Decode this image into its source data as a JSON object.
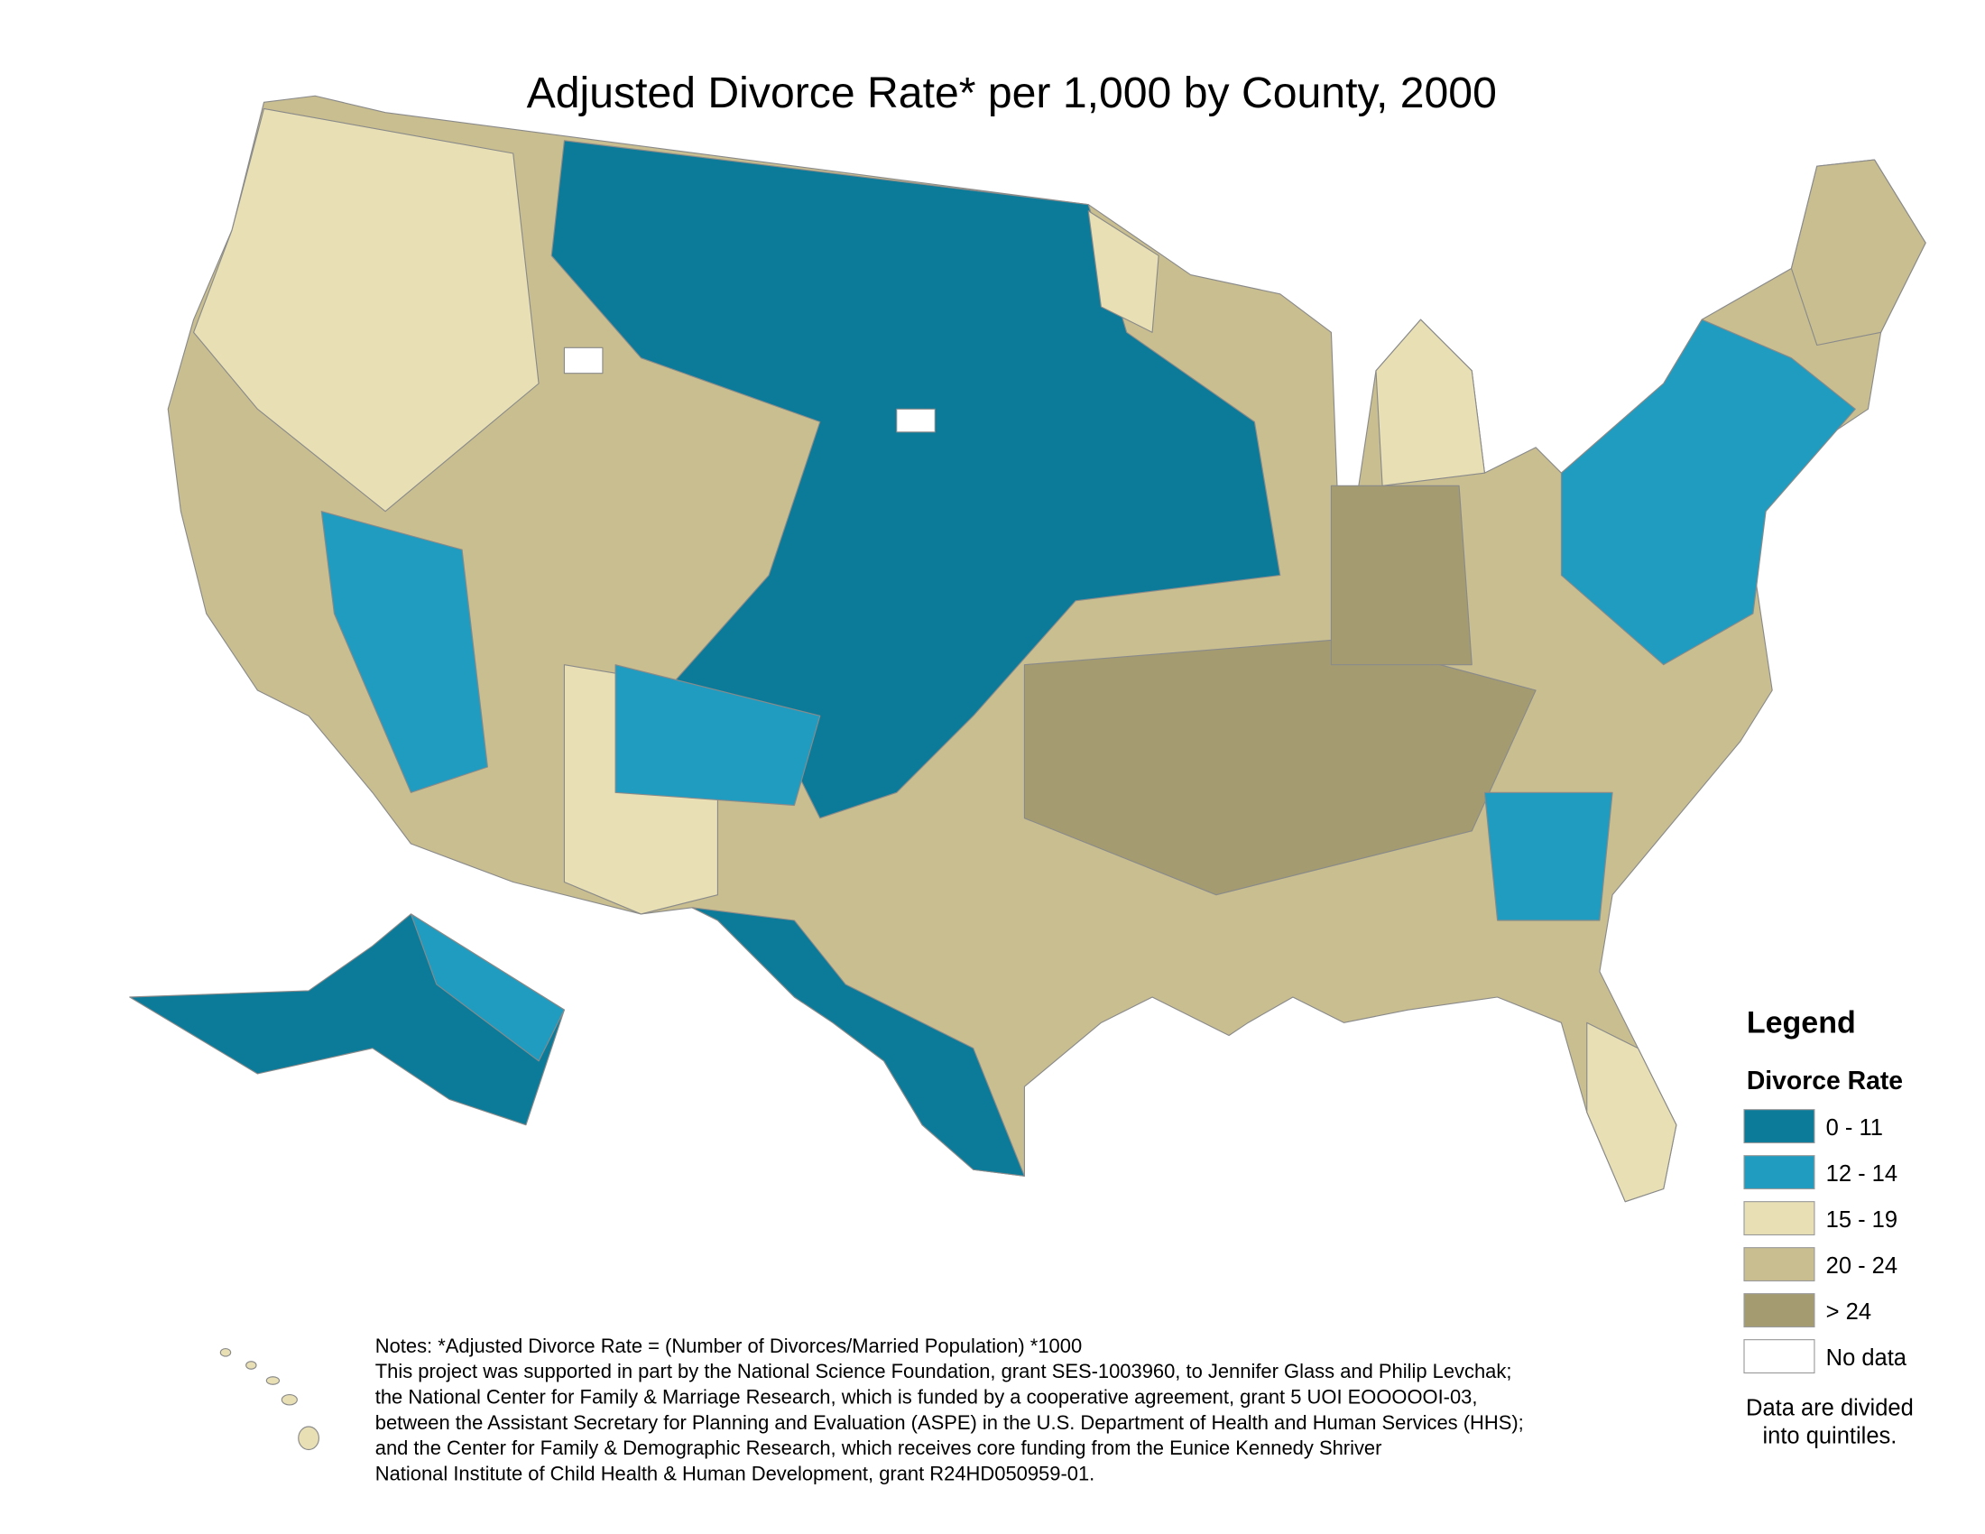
{
  "title": "Adjusted Divorce Rate* per 1,000 by County, 2000",
  "legend": {
    "title": "Legend",
    "subtitle": "Divorce Rate",
    "items": [
      {
        "label": "0 - 11",
        "color": "#0c7b9a"
      },
      {
        "label": "12 - 14",
        "color": "#1f9cc0"
      },
      {
        "label": "15 - 19",
        "color": "#e8e0b4"
      },
      {
        "label": "20 - 24",
        "color": "#c9be90"
      },
      {
        "label": "> 24",
        "color": "#a49c70"
      },
      {
        "label": "No data",
        "color": "#ffffff"
      }
    ],
    "note": [
      "Data are divided",
      "into quintiles."
    ]
  },
  "notes": [
    "Notes: *Adjusted Divorce Rate = (Number of Divorces/Married Population) *1000",
    "This project was supported in part by the National Science Foundation, grant SES-1003960, to Jennifer Glass and Philip Levchak;",
    "the National Center for Family & Marriage Research, which is funded by a cooperative agreement, grant 5 UOI EOOOOOI-03,",
    "between the Assistant Secretary for Planning and Evaluation (ASPE) in the U.S. Department of Health and Human Services (HHS);",
    "and the Center for Family & Demographic Research, which receives core funding from the Eunice Kennedy Shriver",
    "National Institute of Child Health & Human Development, grant R24HD050959-01."
  ]
}
